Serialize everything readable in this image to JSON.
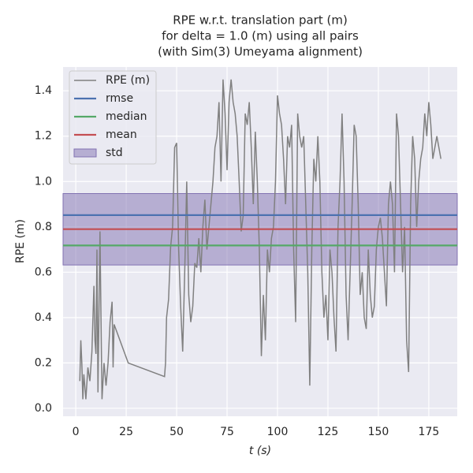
{
  "chart_data": {
    "type": "line",
    "title": [
      "RPE w.r.t. translation part (m)",
      "for delta = 1.0 (m) using all pairs",
      "(with Sim(3) Umeyama alignment)"
    ],
    "xlabel": "t (s)",
    "ylabel": "RPE (m)",
    "xlim": [
      -6.3,
      189.1
    ],
    "ylim": [
      -0.035,
      1.505
    ],
    "xticks": [
      0,
      25,
      50,
      75,
      100,
      125,
      150,
      175
    ],
    "yticks": [
      {
        "value": 0,
        "label": "0.0"
      },
      0.2,
      0.4,
      0.6,
      0.8,
      {
        "value": 1,
        "label": "1.0"
      },
      1.2,
      1.4
    ],
    "grid": true,
    "legend": "upper left",
    "band": {
      "name": "std",
      "color": "#8172b2",
      "values": [
        0.632,
        0.947
      ]
    },
    "reference_lines": [
      {
        "name": "rmse",
        "color": "#4c72b0",
        "value": 0.852
      },
      {
        "name": "median",
        "color": "#55a868",
        "value": 0.718
      },
      {
        "name": "mean",
        "color": "#c44e52",
        "value": 0.79
      }
    ],
    "series": [
      {
        "name": "RPE (m)",
        "color": "#808080",
        "x": [
          2,
          2.5,
          3,
          3.5,
          4,
          5,
          6,
          7,
          8,
          9,
          9.5,
          10,
          10.5,
          11,
          12,
          12.5,
          13,
          14,
          15,
          16,
          17,
          18,
          18.5,
          19,
          26,
          44,
          44.5,
          45,
          46,
          47,
          48,
          49,
          50,
          51,
          52,
          53,
          54,
          55,
          56,
          57,
          58,
          59,
          60,
          61,
          62,
          63,
          64,
          65,
          66,
          67,
          68,
          69,
          70,
          71,
          72,
          73,
          74,
          75,
          76,
          77,
          78,
          79,
          80,
          81,
          82,
          83,
          84,
          85,
          86,
          87,
          88,
          89,
          90,
          91,
          92,
          93,
          94,
          95,
          96,
          97,
          98,
          99,
          100,
          101,
          102,
          103,
          104,
          105,
          106,
          107,
          108,
          109,
          110,
          111,
          112,
          113,
          114,
          115,
          116,
          117,
          118,
          119,
          120,
          121,
          122,
          123,
          124,
          125,
          126,
          127,
          128,
          129,
          130,
          131,
          132,
          133,
          134,
          135,
          136,
          137,
          138,
          139,
          140,
          141,
          142,
          143,
          144,
          145,
          146,
          147,
          148,
          149,
          150,
          151,
          152,
          153,
          154,
          155,
          156,
          157,
          158,
          159,
          160,
          161,
          162,
          163,
          164,
          165,
          166,
          167,
          168,
          169,
          170,
          171,
          172,
          173,
          174,
          175,
          176,
          177,
          178,
          179,
          180,
          181
        ],
        "values": [
          0.12,
          0.3,
          0.2,
          0.04,
          0.15,
          0.04,
          0.18,
          0.12,
          0.25,
          0.54,
          0.3,
          0.24,
          0.7,
          0.07,
          0.78,
          0.4,
          0.04,
          0.2,
          0.1,
          0.2,
          0.38,
          0.47,
          0.18,
          0.37,
          0.2,
          0.14,
          0.2,
          0.4,
          0.48,
          0.71,
          0.8,
          1.15,
          1.17,
          0.7,
          0.45,
          0.25,
          0.6,
          1.0,
          0.5,
          0.38,
          0.45,
          0.64,
          0.62,
          0.75,
          0.6,
          0.8,
          0.92,
          0.7,
          0.8,
          0.9,
          1.0,
          1.15,
          1.2,
          1.35,
          1.0,
          1.45,
          1.3,
          1.05,
          1.35,
          1.45,
          1.35,
          1.3,
          1.2,
          1.0,
          0.78,
          0.85,
          1.3,
          1.25,
          1.35,
          1.15,
          0.9,
          1.22,
          1.0,
          0.7,
          0.23,
          0.5,
          0.3,
          0.7,
          0.6,
          0.75,
          0.8,
          1.0,
          1.38,
          1.3,
          1.25,
          1.1,
          0.9,
          1.2,
          1.15,
          1.25,
          0.7,
          0.38,
          1.3,
          1.2,
          1.15,
          1.2,
          0.9,
          0.6,
          0.1,
          0.7,
          1.1,
          1.0,
          1.2,
          1.0,
          0.6,
          0.4,
          0.5,
          0.3,
          0.7,
          0.6,
          0.4,
          0.25,
          0.8,
          1.0,
          1.3,
          1.0,
          0.5,
          0.3,
          0.6,
          0.9,
          1.25,
          1.2,
          0.9,
          0.5,
          0.6,
          0.4,
          0.35,
          0.7,
          0.5,
          0.4,
          0.45,
          0.7,
          0.8,
          0.84,
          0.75,
          0.6,
          0.45,
          0.9,
          1.0,
          0.9,
          0.6,
          1.3,
          1.2,
          0.9,
          0.6,
          0.8,
          0.3,
          0.16,
          0.9,
          1.2,
          1.1,
          0.8,
          1.0,
          1.1,
          1.15,
          1.3,
          1.2,
          1.35,
          1.25,
          1.1,
          1.15,
          1.2,
          1.15,
          1.1
        ]
      }
    ]
  }
}
